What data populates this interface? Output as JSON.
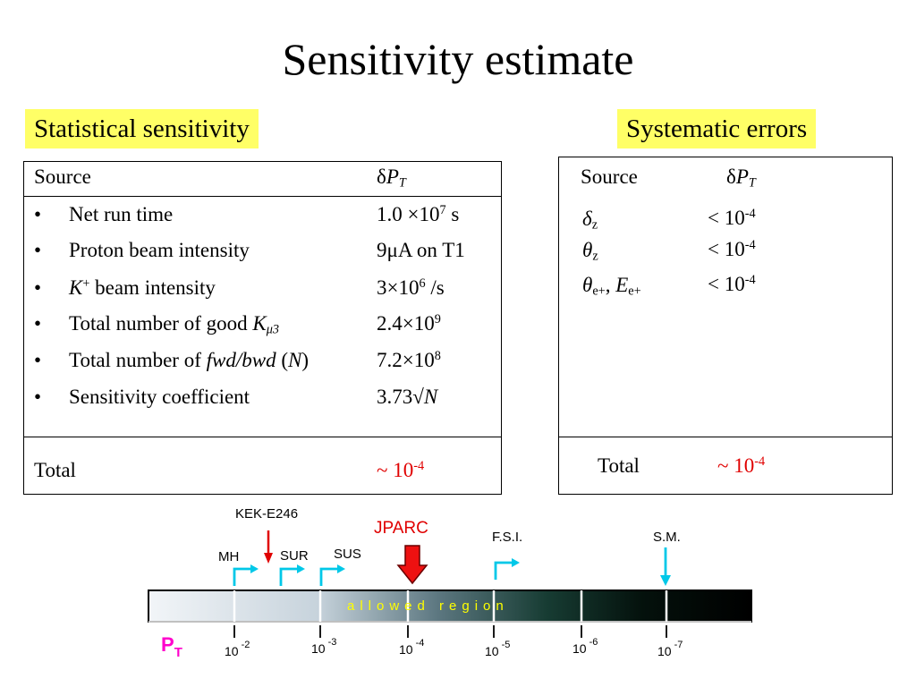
{
  "title": "Sensitivity estimate",
  "statistical": {
    "heading": "Statistical sensitivity",
    "col_source": "Source",
    "col_dpt_delta": "δ",
    "col_dpt_p": "P",
    "col_dpt_sub": "T",
    "bullet": "•",
    "rows": [
      {
        "label": "Net run time",
        "value": "1.0 ×10",
        "value_sup": "7",
        "value_tail": " s"
      },
      {
        "label": "Proton beam intensity",
        "value": "9μA on T1"
      },
      {
        "label_italic": "K",
        "label_sup": "+",
        "label_tail": " beam intensity",
        "value": "3×10",
        "value_sup": "6",
        "value_tail": " /s"
      },
      {
        "label": "Total number of good ",
        "label_italic": "K",
        "label_sub": "μ3",
        "value": "2.4×10",
        "value_sup": "9"
      },
      {
        "label": "Total number of ",
        "label_italic": "fwd/bwd",
        "label_tail1": " (",
        "label_italic2": "N",
        "label_tail2": ")",
        "value": "7.2×10",
        "value_sup": "8"
      },
      {
        "label": "Sensitivity coefficient",
        "value": "3.73√",
        "value_italic": "N"
      }
    ],
    "total_label": "Total",
    "total_value": "~ 10",
    "total_sup": "-4"
  },
  "systematic": {
    "heading": "Systematic errors",
    "col_source": "Source",
    "col_dpt_delta": "δ",
    "col_dpt_p": "P",
    "col_dpt_sub": "T",
    "rows": [
      {
        "sym": "δ",
        "sub": "z",
        "value": "< 10",
        "value_sup": "-4"
      },
      {
        "sym": "θ",
        "sub": "z",
        "value": "< 10",
        "value_sup": "-4"
      },
      {
        "sym": "θ",
        "sub": "e+",
        "mid": ", ",
        "sym2": "E",
        "sub2": "e+",
        "value": "< 10",
        "value_sup": "-4"
      }
    ],
    "total_label": "Total",
    "total_value": "~ 10",
    "total_sup": "-4"
  },
  "scale": {
    "experiments": {
      "kek": "KEK-E246",
      "jparc": "JPARC",
      "mh": "MH",
      "sur": "SUR",
      "sus": "SUS",
      "fsi": "F.S.I.",
      "sm": "S.M."
    },
    "bar_text": "allowed region",
    "axis_label_p": "P",
    "axis_label_t": "T",
    "ticks": [
      {
        "base": "10",
        "exp": "-2"
      },
      {
        "base": "10",
        "exp": "-3"
      },
      {
        "base": "10",
        "exp": "-4"
      },
      {
        "base": "10",
        "exp": "-5"
      },
      {
        "base": "10",
        "exp": "-6"
      },
      {
        "base": "10",
        "exp": "-7"
      }
    ],
    "colors": {
      "cyan_arrow": "#00c8e8",
      "red_arrow": "#e00000",
      "jparc_text": "#e00000",
      "bar_text": "#ffff00",
      "pt_label": "#ff00cc"
    }
  }
}
